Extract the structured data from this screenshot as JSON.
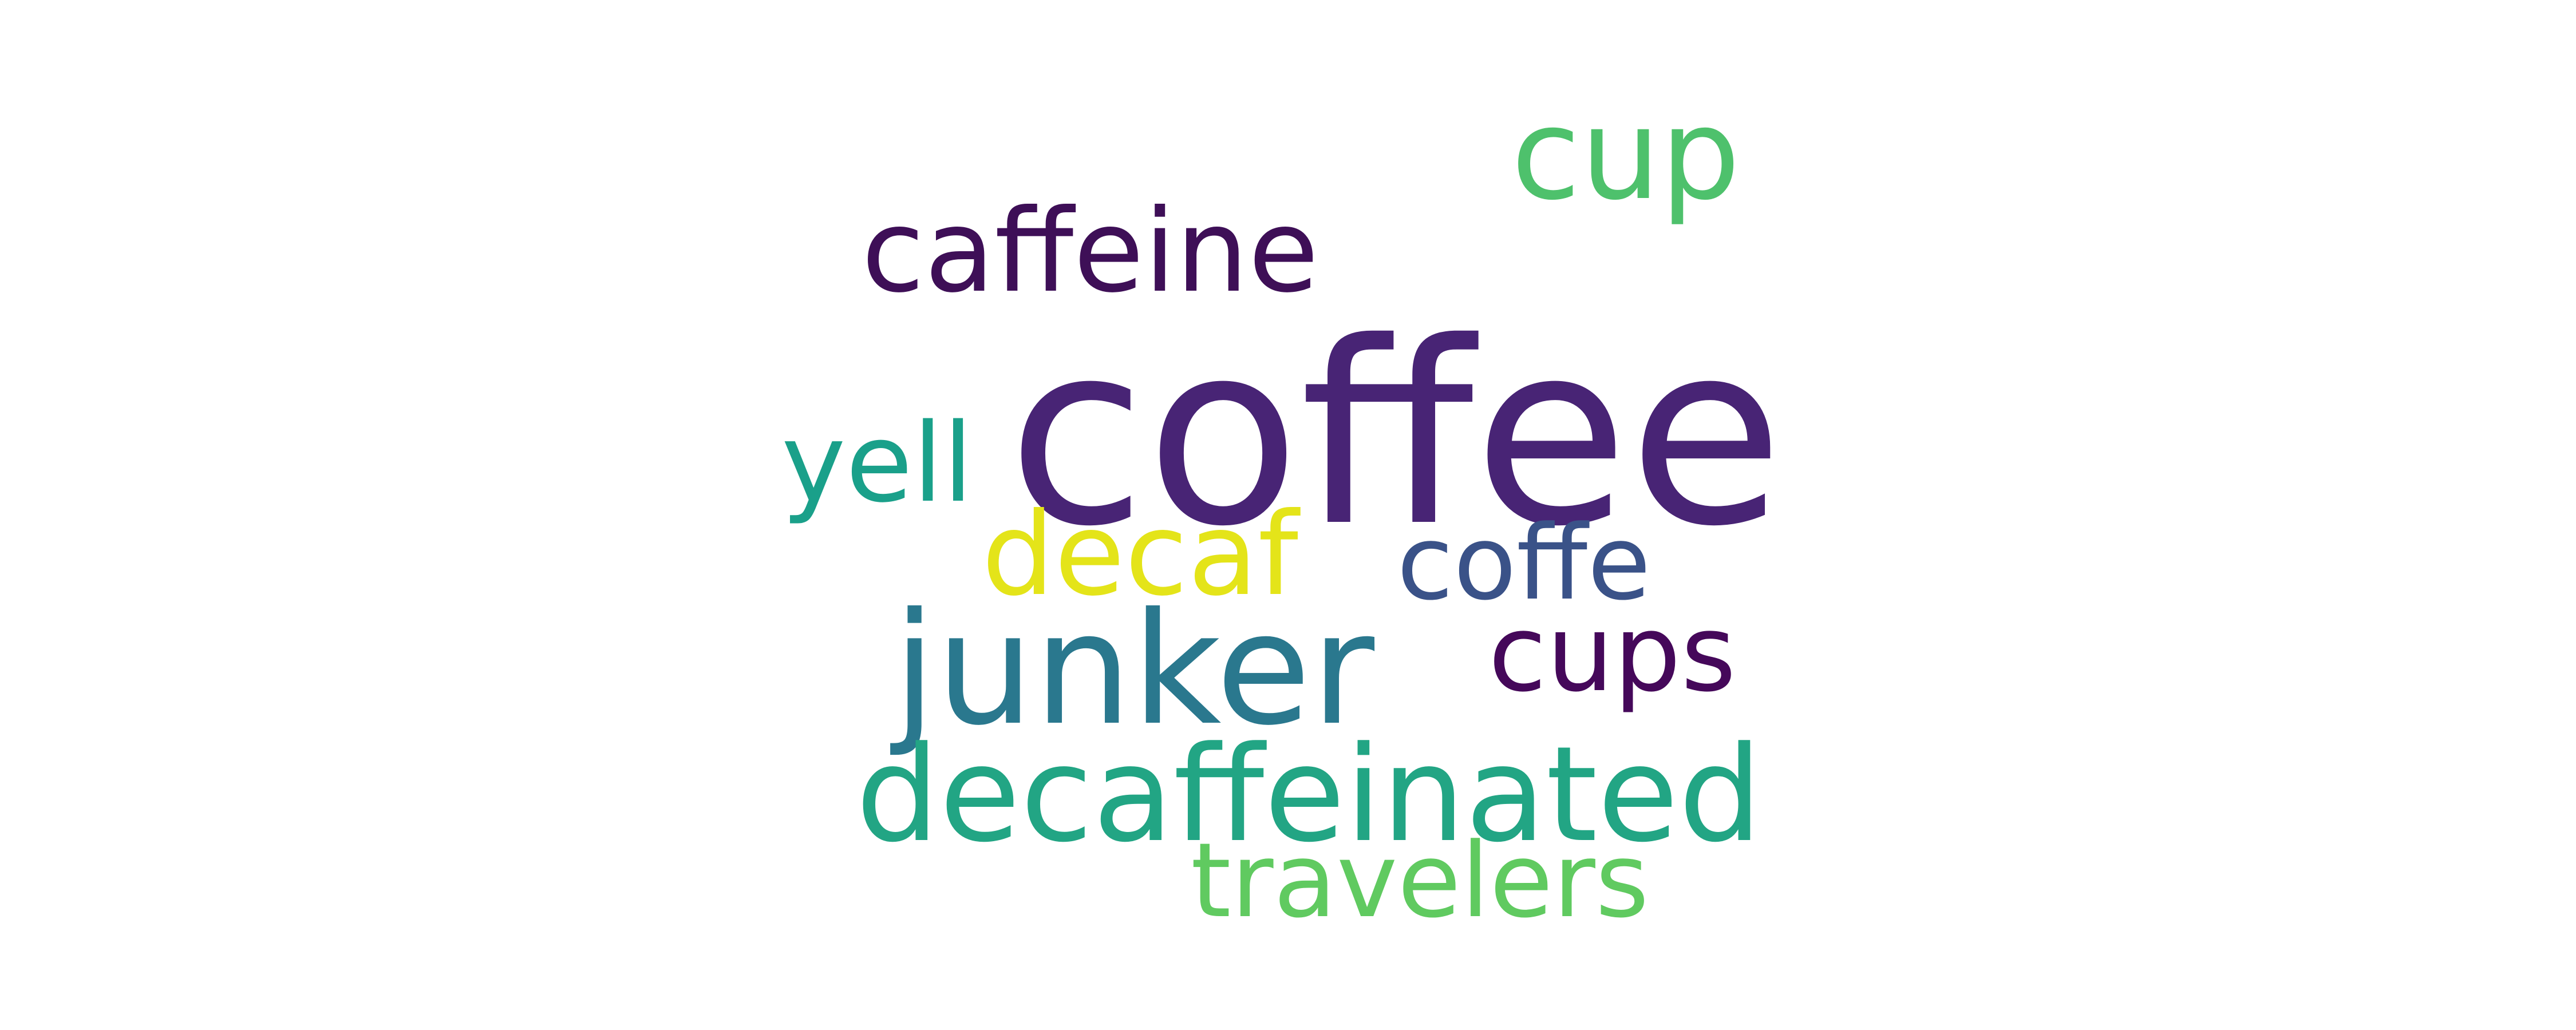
{
  "words": {
    "coffee": {
      "text": "coffee",
      "color": "#482475"
    },
    "caffeine": {
      "text": "caffeine",
      "color": "#3e0f57"
    },
    "cup": {
      "text": "cup",
      "color": "#4ec16c"
    },
    "yell": {
      "text": "yell",
      "color": "#1aa08a"
    },
    "decaf": {
      "text": "decaf",
      "color": "#e4e419"
    },
    "coffe": {
      "text": "coffe",
      "color": "#3a5288"
    },
    "junker": {
      "text": "junker",
      "color": "#2a788e"
    },
    "cups": {
      "text": "cups",
      "color": "#45085a"
    },
    "decaffeinated": {
      "text": "decaffeinated",
      "color": "#22a584"
    },
    "travelers": {
      "text": "travelers",
      "color": "#60ca60"
    }
  }
}
